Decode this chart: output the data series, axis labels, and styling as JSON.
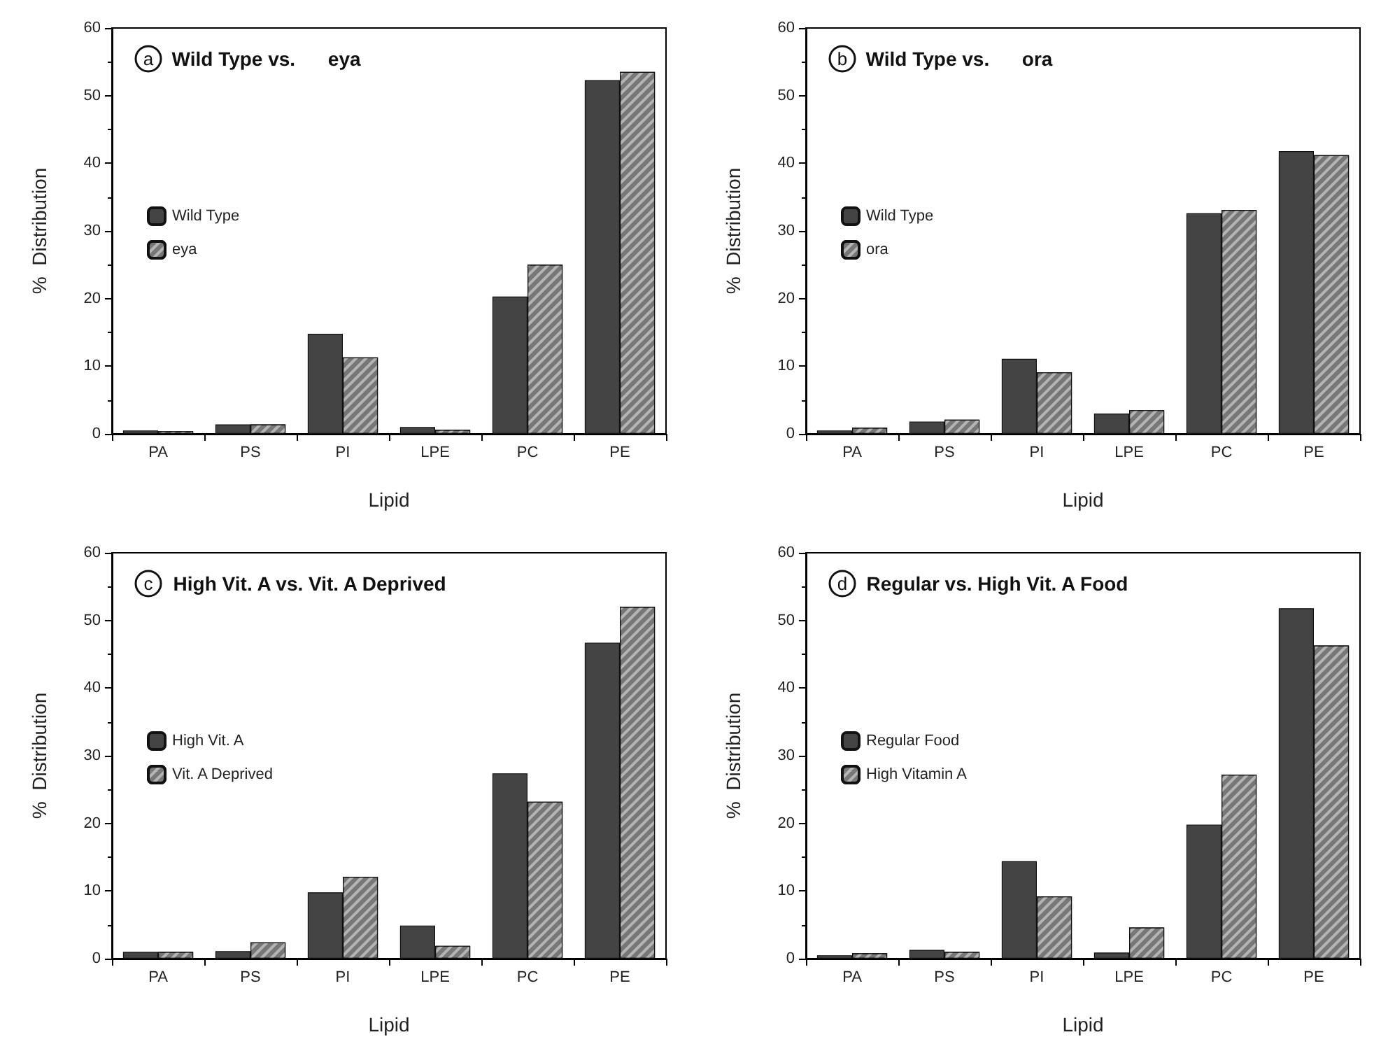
{
  "chart_data": [
    {
      "type": "bar",
      "title": "Wild Type vs.      eya",
      "annotations": [
        "a"
      ],
      "xlabel": "Lipid",
      "ylabel": "%  Distribution",
      "categories": [
        "PA",
        "PS",
        "PI",
        "LPE",
        "PC",
        "PE"
      ],
      "series": [
        {
          "name": "Wild Type",
          "color": "#444444",
          "values": [
            0.5,
            1.4,
            14.8,
            1.0,
            20.3,
            52.3
          ]
        },
        {
          "name": "eya",
          "color": "#777777",
          "values": [
            0.4,
            1.4,
            11.3,
            0.6,
            25.0,
            53.5
          ]
        }
      ],
      "ylim": [
        0,
        60
      ],
      "yticks": [
        0,
        10,
        20,
        30,
        40,
        50,
        60
      ],
      "legend": "left",
      "grid": false
    },
    {
      "type": "bar",
      "title": "Wild Type vs.      ora",
      "annotations": [
        "b"
      ],
      "xlabel": "Lipid",
      "ylabel": "%  Distribution",
      "categories": [
        "PA",
        "PS",
        "PI",
        "LPE",
        "PC",
        "PE"
      ],
      "series": [
        {
          "name": "Wild Type",
          "color": "#444444",
          "values": [
            0.5,
            1.8,
            11.1,
            3.0,
            32.6,
            41.8
          ]
        },
        {
          "name": "ora",
          "color": "#777777",
          "values": [
            0.9,
            2.1,
            9.1,
            3.5,
            33.1,
            41.2
          ]
        }
      ],
      "ylim": [
        0,
        60
      ],
      "yticks": [
        0,
        10,
        20,
        30,
        40,
        50,
        60
      ],
      "legend": "left",
      "grid": false
    },
    {
      "type": "bar",
      "title": "High Vit. A vs. Vit. A Deprived",
      "annotations": [
        "c"
      ],
      "xlabel": "Lipid",
      "ylabel": "%  Distribution",
      "categories": [
        "PA",
        "PS",
        "PI",
        "LPE",
        "PC",
        "PE"
      ],
      "series": [
        {
          "name": "High Vit. A",
          "color": "#444444",
          "values": [
            1.0,
            1.1,
            9.8,
            4.9,
            27.4,
            46.7
          ]
        },
        {
          "name": "Vit. A Deprived",
          "color": "#777777",
          "values": [
            1.0,
            2.4,
            12.1,
            1.9,
            23.2,
            52.0
          ]
        }
      ],
      "ylim": [
        0,
        60
      ],
      "yticks": [
        0,
        10,
        20,
        30,
        40,
        50,
        60
      ],
      "legend": "left",
      "grid": false
    },
    {
      "type": "bar",
      "title": "Regular vs. High Vit. A Food",
      "annotations": [
        "d"
      ],
      "xlabel": "Lipid",
      "ylabel": "%  Distribution",
      "categories": [
        "PA",
        "PS",
        "PI",
        "LPE",
        "PC",
        "PE"
      ],
      "series": [
        {
          "name": "Regular Food",
          "color": "#444444",
          "values": [
            0.5,
            1.3,
            14.4,
            0.9,
            19.8,
            51.8
          ]
        },
        {
          "name": "High Vitamin A",
          "color": "#777777",
          "values": [
            0.8,
            1.0,
            9.2,
            4.6,
            27.2,
            46.3
          ]
        }
      ],
      "ylim": [
        0,
        60
      ],
      "yticks": [
        0,
        10,
        20,
        30,
        40,
        50,
        60
      ],
      "legend": "left",
      "grid": false
    }
  ]
}
